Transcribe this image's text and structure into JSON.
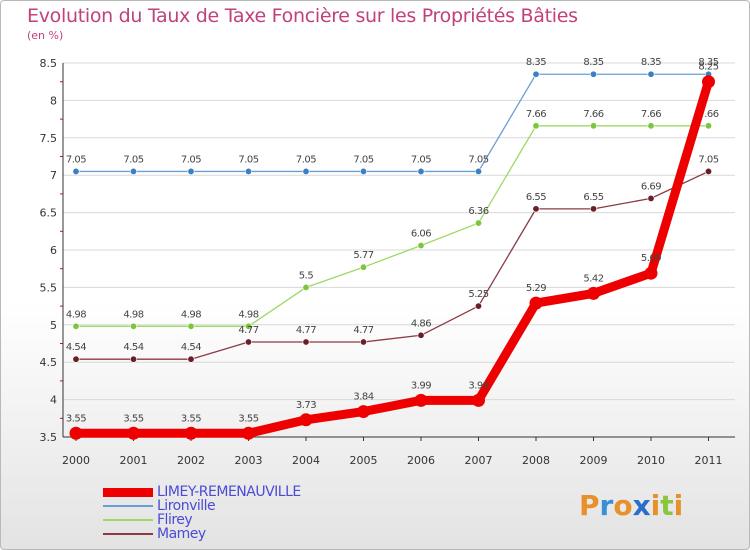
{
  "title": "Evolution du Taux de Taxe Foncière sur les Propriétés Bâties",
  "subtitle": "(en %)",
  "logo": {
    "text": "Proxiti",
    "letter_colors": [
      "#e8912a",
      "#3a8fd6",
      "#e8912a",
      "#2a6ec9",
      "#e8912a",
      "#8bc53f",
      "#e8912a"
    ]
  },
  "chart_data": {
    "type": "line",
    "x": [
      "2000",
      "2001",
      "2002",
      "2003",
      "2004",
      "2005",
      "2006",
      "2007",
      "2008",
      "2009",
      "2010",
      "2011"
    ],
    "ylim": [
      3.5,
      8.5
    ],
    "yticks": [
      "3.5",
      "4",
      "4.5",
      "5",
      "5.5",
      "6",
      "6.5",
      "7",
      "7.5",
      "8",
      "8.5"
    ],
    "grid": "horizontal",
    "legend_position": "bottom-left",
    "series": [
      {
        "name": "Lironville",
        "color": "#6a9fd6",
        "marker": "#3b7fc4",
        "values": [
          7.05,
          7.05,
          7.05,
          7.05,
          7.05,
          7.05,
          7.05,
          7.05,
          8.35,
          8.35,
          8.35,
          8.35
        ],
        "labels": [
          "7.05",
          "7.05",
          "7.05",
          "7.05",
          "7.05",
          "7.05",
          "7.05",
          "7.05",
          "8.35",
          "8.35",
          "8.35",
          "8.35"
        ]
      },
      {
        "name": "Flirey",
        "color": "#9ed866",
        "marker": "#7cc63b",
        "values": [
          4.98,
          4.98,
          4.98,
          4.98,
          5.5,
          5.77,
          6.06,
          6.36,
          7.66,
          7.66,
          7.66,
          7.66
        ],
        "labels": [
          "4.98",
          "4.98",
          "4.98",
          "4.98",
          "5.5",
          "5.77",
          "6.06",
          "6.36",
          "7.66",
          "7.66",
          "7.66",
          "7.66"
        ]
      },
      {
        "name": "Mamey",
        "color": "#8b3a45",
        "marker": "#6a1e27",
        "values": [
          4.54,
          4.54,
          4.54,
          4.77,
          4.77,
          4.77,
          4.86,
          5.25,
          6.55,
          6.55,
          6.69,
          7.05
        ],
        "labels": [
          "4.54",
          "4.54",
          "4.54",
          "4.77",
          "4.77",
          "4.77",
          "4.86",
          "5.25",
          "6.55",
          "6.55",
          "6.69",
          "7.05"
        ]
      },
      {
        "name": "LIMEY-REMENAUVILLE",
        "color": "#ee0000",
        "marker": "#ee0000",
        "values": [
          3.55,
          3.55,
          3.55,
          3.55,
          3.73,
          3.84,
          3.99,
          3.99,
          5.29,
          5.42,
          5.69,
          8.25
        ],
        "labels": [
          "3.55",
          "3.55",
          "3.55",
          "3.55",
          "3.73",
          "3.84",
          "3.99",
          "3.99",
          "5.29",
          "5.42",
          "5.69",
          "8.25"
        ]
      }
    ],
    "legend": [
      "LIMEY-REMENAUVILLE",
      "Lironville",
      "Flirey",
      "Mamey"
    ]
  }
}
